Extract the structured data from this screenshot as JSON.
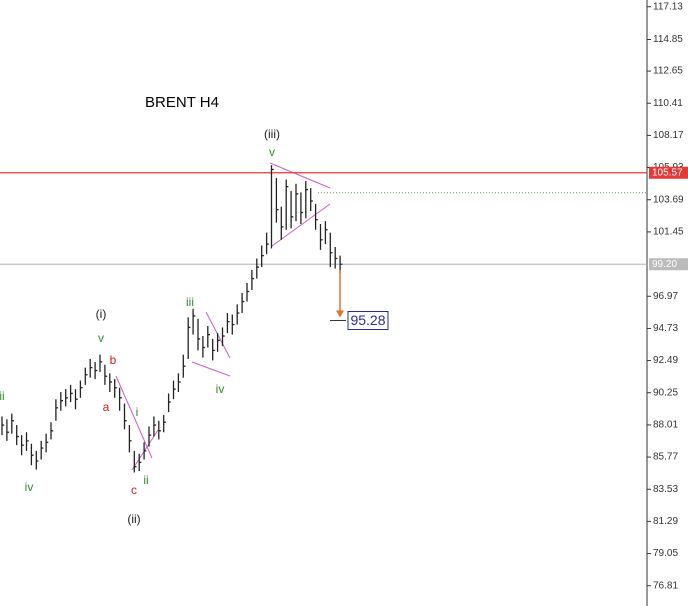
{
  "chart_data": {
    "type": "ohlc",
    "title": "BRENT H4",
    "ylim": [
      75.4,
      117.6
    ],
    "yticks": [
      117.13,
      114.85,
      112.65,
      110.41,
      108.17,
      105.93,
      103.69,
      101.45,
      96.97,
      94.73,
      92.49,
      90.25,
      88.01,
      85.77,
      83.53,
      81.29,
      79.05,
      76.81
    ],
    "bar_color": "#222222",
    "high": [
      88.6,
      88.4,
      88.8,
      88.0,
      87.3,
      87.5,
      86.7,
      86.2,
      86.9,
      87.4,
      88.2,
      89.8,
      90.3,
      90.5,
      90.8,
      90.5,
      91.1,
      92.0,
      92.6,
      92.4,
      92.9,
      92.2,
      91.6,
      91.2,
      90.6,
      89.5,
      88.0,
      86.2,
      86.0,
      86.8,
      87.9,
      88.6,
      88.3,
      88.7,
      90.2,
      91.1,
      91.6,
      92.9,
      95.5,
      96.1,
      95.4,
      94.2,
      94.9,
      94.0,
      94.4,
      94.8,
      95.8,
      95.7,
      96.4,
      97.2,
      97.9,
      98.8,
      99.6,
      100.5,
      101.4,
      106.1,
      105.2,
      103.2,
      105.1,
      104.3,
      104.8,
      104.2,
      105.0,
      104.5,
      103.4,
      102.0,
      102.2,
      101.4,
      100.4,
      99.8
    ],
    "low": [
      87.3,
      86.9,
      87.4,
      86.6,
      85.9,
      86.2,
      85.2,
      84.9,
      85.6,
      86.1,
      87.0,
      88.3,
      89.0,
      89.3,
      89.6,
      89.1,
      89.9,
      90.8,
      91.3,
      91.2,
      91.7,
      90.8,
      90.3,
      89.9,
      89.0,
      87.7,
      86.1,
      84.7,
      84.8,
      85.6,
      86.5,
      87.2,
      87.0,
      87.5,
      88.9,
      89.8,
      90.3,
      91.3,
      92.6,
      94.3,
      93.2,
      92.7,
      93.4,
      92.5,
      93.1,
      93.5,
      94.4,
      94.3,
      95.0,
      95.8,
      96.6,
      97.4,
      98.2,
      99.0,
      99.9,
      100.3,
      102.1,
      100.9,
      101.6,
      101.7,
      102.2,
      102.0,
      102.4,
      102.9,
      101.6,
      100.2,
      100.6,
      99.0,
      98.9,
      98.6
    ],
    "close": [
      88.0,
      87.5,
      88.3,
      87.2,
      86.6,
      86.9,
      85.9,
      85.5,
      86.4,
      86.8,
      87.6,
      89.2,
      89.7,
      89.9,
      90.2,
      89.8,
      90.6,
      91.5,
      92.0,
      91.8,
      92.4,
      91.4,
      91.0,
      90.6,
      89.9,
      88.3,
      86.9,
      85.1,
      85.4,
      86.2,
      87.3,
      88.0,
      87.6,
      88.2,
      89.6,
      90.5,
      91.0,
      92.1,
      94.8,
      95.6,
      94.0,
      93.4,
      94.3,
      93.2,
      93.9,
      94.2,
      95.2,
      95.0,
      95.8,
      96.6,
      97.3,
      98.2,
      99.0,
      99.8,
      100.6,
      105.8,
      103.0,
      101.8,
      104.6,
      102.5,
      104.1,
      102.8,
      104.4,
      103.6,
      102.3,
      100.9,
      101.6,
      100.0,
      99.6,
      99.2
    ],
    "levels": [
      {
        "value": 105.57,
        "color": "#e53935"
      },
      {
        "value": 99.2,
        "label": "99.20",
        "color": "#bbbbbb"
      }
    ],
    "dotted_level": {
      "value": 104.18,
      "color": "#5aa05a"
    },
    "target": {
      "value": 95.28,
      "color": "#2a2a9a"
    },
    "arrow_color": "#e8712a",
    "wave_labels": [
      {
        "text": "(iii)",
        "color": "#222222"
      },
      {
        "text": "v",
        "color": "#2e8b2e"
      },
      {
        "text": "(i)",
        "color": "#222222"
      },
      {
        "text": "v",
        "color": "#2e8b2e"
      },
      {
        "text": "b",
        "color": "#cc2222"
      },
      {
        "text": "a",
        "color": "#cc2222"
      },
      {
        "text": "i",
        "color": "#2e8b2e"
      },
      {
        "text": "ii",
        "color": "#2e8b2e"
      },
      {
        "text": "c",
        "color": "#cc2222"
      },
      {
        "text": "(ii)",
        "color": "#222222"
      },
      {
        "text": "iv",
        "color": "#2e8b2e"
      },
      {
        "text": "ii",
        "color": "#2e8b2e"
      },
      {
        "text": "iii",
        "color": "#2e8b2e"
      },
      {
        "text": "iv",
        "color": "#2e8b2e"
      }
    ]
  }
}
